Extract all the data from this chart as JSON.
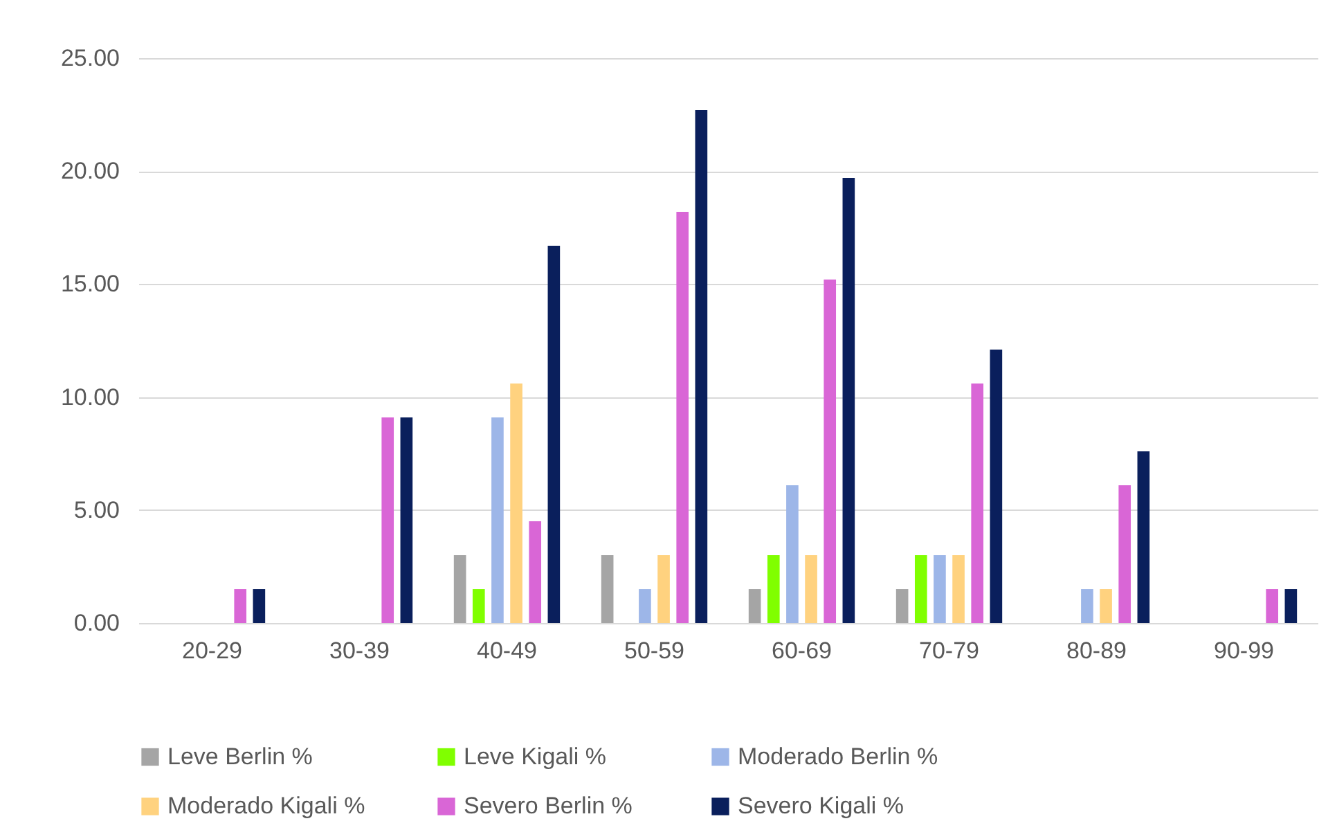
{
  "chart_data": {
    "type": "bar",
    "categories": [
      "20-29",
      "30-39",
      "40-49",
      "50-59",
      "60-69",
      "70-79",
      "80-89",
      "90-99"
    ],
    "series": [
      {
        "name": "Leve Berlin %",
        "color": "#a5a5a5",
        "values": [
          0,
          0,
          3.0,
          3.0,
          1.5,
          1.5,
          0,
          0
        ]
      },
      {
        "name": "Leve Kigali %",
        "color": "#80ff00",
        "values": [
          0,
          0,
          1.5,
          0,
          3.0,
          3.0,
          0,
          0
        ]
      },
      {
        "name": "Moderado Berlin %",
        "color": "#9db6e8",
        "values": [
          0,
          0,
          9.1,
          1.5,
          6.1,
          3.0,
          1.5,
          0
        ]
      },
      {
        "name": "Moderado Kigali %",
        "color": "#ffd27f",
        "values": [
          0,
          0,
          10.6,
          3.0,
          3.0,
          3.0,
          1.5,
          0
        ]
      },
      {
        "name": "Severo Berlin  %",
        "color": "#d966d6",
        "values": [
          1.5,
          9.1,
          4.5,
          18.2,
          15.2,
          10.6,
          6.1,
          1.5
        ]
      },
      {
        "name": "Severo Kigali %",
        "color": "#0a1f5c",
        "values": [
          1.5,
          9.1,
          16.7,
          22.7,
          19.7,
          12.1,
          7.6,
          1.5
        ]
      }
    ],
    "ylim": [
      0,
      25
    ],
    "yticks": [
      {
        "value": 0,
        "label": "0.00"
      },
      {
        "value": 5,
        "label": "5.00"
      },
      {
        "value": 10,
        "label": "10.00"
      },
      {
        "value": 15,
        "label": "15.00"
      },
      {
        "value": 20,
        "label": "20.00"
      },
      {
        "value": 25,
        "label": "25.00"
      }
    ],
    "grid": "y",
    "legend": "bottom"
  }
}
